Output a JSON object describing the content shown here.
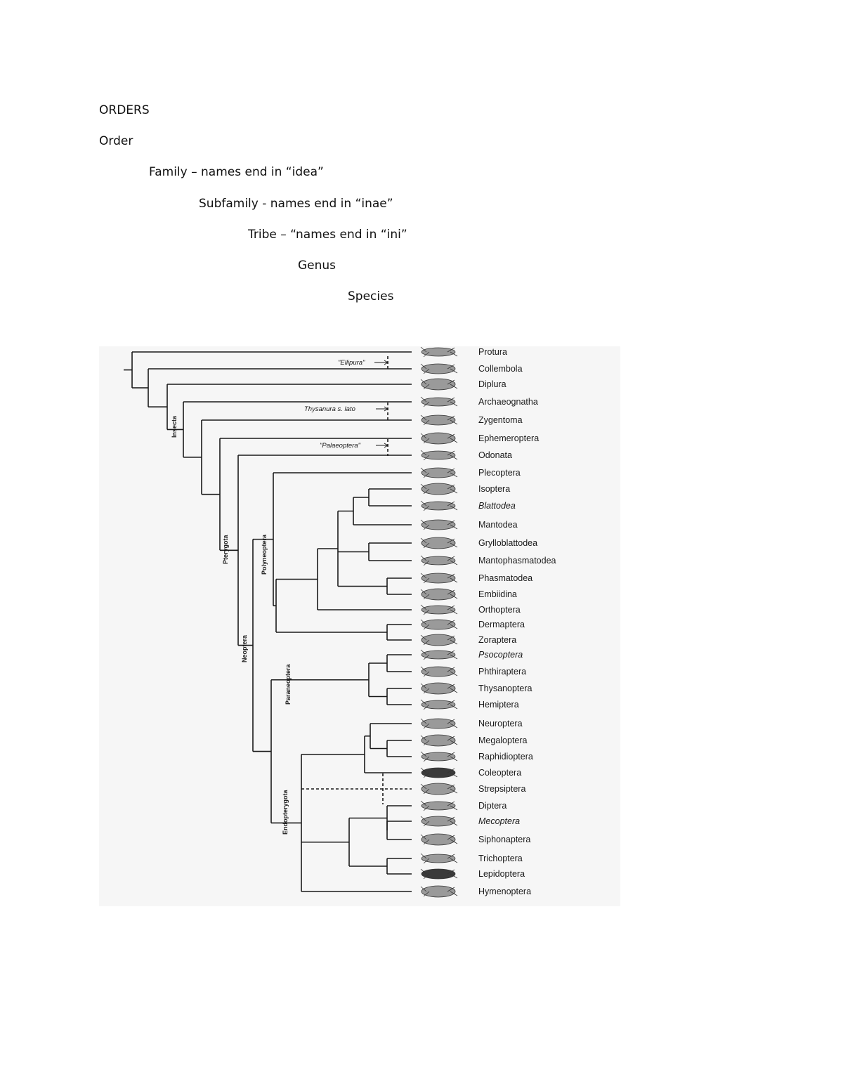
{
  "headings": {
    "orders": "ORDERS",
    "order": "Order",
    "family": "Family – names end in “idea”",
    "subfamily": "Subfamily - names end in “inae”",
    "tribe": "Tribe – “names end in “ini”",
    "genus": "Genus",
    "species": "Species"
  },
  "figure": {
    "taxa": [
      "Protura",
      "Collembola",
      "Diplura",
      "Archaeognatha",
      "Zygentoma",
      "Ephemeroptera",
      "Odonata",
      "Plecoptera",
      "Isoptera",
      "Blattodea",
      "Mantodea",
      "Grylloblattodea",
      "Mantophasmatodea",
      "Phasmatodea",
      "Embiidina",
      "Orthoptera",
      "Dermaptera",
      "Zoraptera",
      "Psocoptera",
      "Phthiraptera",
      "Thysanoptera",
      "Hemiptera",
      "Neuroptera",
      "Megaloptera",
      "Raphidioptera",
      "Coleoptera",
      "Strepsiptera",
      "Diptera",
      "Mecoptera",
      "Siphonaptera",
      "Trichoptera",
      "Lepidoptera",
      "Hymenoptera"
    ],
    "italic_taxa": [
      "Blattodea",
      "Psocoptera",
      "Mecoptera"
    ],
    "clades": {
      "insecta": "Insecta",
      "pterygota": "Pterygota",
      "neoptera": "Neoptera",
      "polyneoptera": "Polyneoptera",
      "paraneoptera": "Paraneoptera",
      "endopterygota": "Endopterygota"
    },
    "group_notes": {
      "ellipura": "\"Ellipura\"",
      "thysanura": "Thysanura s. lato",
      "palaeoptera": "\"Palaeoptera\""
    }
  }
}
